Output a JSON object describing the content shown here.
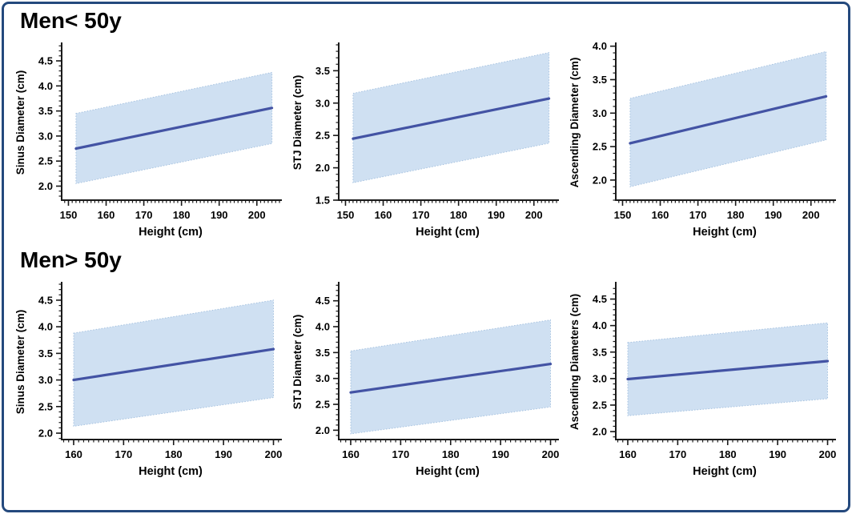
{
  "frame": {
    "border_color": "#24497d",
    "background": "#ffffff"
  },
  "styles": {
    "band_fill": "#cfe0f2",
    "band_edge": "#a6c2e0",
    "line_color": "#4353a4",
    "axis_color": "#1a1a1a",
    "text_color": "#000000"
  },
  "sections": [
    {
      "title": "Men< 50y"
    },
    {
      "title": "Men> 50y"
    }
  ],
  "chart_data": {
    "type": "line",
    "description": "Linear regression of aortic diameters on body height with shaded prediction interval bands",
    "panels": [
      {
        "id": "men-under-50-sinus",
        "row": 0,
        "section": "Men< 50y",
        "ylabel": "Sinus Diameter (cm)",
        "xlabel": "Height (cm)",
        "xlim": [
          148.2,
          206.0
        ],
        "xticks": [
          150,
          160,
          170,
          180,
          190,
          200
        ],
        "x_minor_step": 1,
        "ylim": [
          1.72,
          4.82
        ],
        "yticks": [
          "2.0",
          "2.5",
          "3.0",
          "3.5",
          "4.0",
          "4.5"
        ],
        "y_minor_step": 0.1,
        "x": [
          152,
          204
        ],
        "line": [
          2.75,
          3.56
        ],
        "band_upper": [
          3.45,
          4.27
        ],
        "band_lower": [
          2.05,
          2.85
        ]
      },
      {
        "id": "men-under-50-stj",
        "row": 0,
        "section": "Men< 50y",
        "ylabel": "STJ Diameter (cm)",
        "xlabel": "Height (cm)",
        "xlim": [
          148.2,
          206.0
        ],
        "xticks": [
          150,
          160,
          170,
          180,
          190,
          200
        ],
        "x_minor_step": 1,
        "ylim": [
          1.5,
          3.9
        ],
        "yticks": [
          "1.5",
          "2.0",
          "2.5",
          "3.0",
          "3.5"
        ],
        "y_minor_step": 0.1,
        "x": [
          152,
          204
        ],
        "line": [
          2.45,
          3.07
        ],
        "band_upper": [
          3.15,
          3.78
        ],
        "band_lower": [
          1.77,
          2.38
        ]
      },
      {
        "id": "men-under-50-ascending",
        "row": 0,
        "section": "Men< 50y",
        "ylabel": "Ascending Diameter (cm)",
        "xlabel": "Height (cm)",
        "xlim": [
          148.2,
          206.0
        ],
        "xticks": [
          150,
          160,
          170,
          180,
          190,
          200
        ],
        "x_minor_step": 1,
        "ylim": [
          1.7,
          4.02
        ],
        "yticks": [
          "2.0",
          "2.5",
          "3.0",
          "3.5",
          "4.0"
        ],
        "y_minor_step": 0.1,
        "x": [
          152,
          204
        ],
        "line": [
          2.55,
          3.25
        ],
        "band_upper": [
          3.22,
          3.92
        ],
        "band_lower": [
          1.9,
          2.6
        ]
      },
      {
        "id": "men-over-50-sinus",
        "row": 1,
        "section": "Men> 50y",
        "ylabel": "Sinus Diameter (cm)",
        "xlabel": "Height (cm)",
        "xlim": [
          157.6,
          201.2
        ],
        "xticks": [
          160,
          170,
          180,
          190,
          200
        ],
        "x_minor_step": 1,
        "ylim": [
          1.88,
          4.8
        ],
        "yticks": [
          "2.0",
          "2.5",
          "3.0",
          "3.5",
          "4.0",
          "4.5"
        ],
        "y_minor_step": 0.1,
        "x": [
          160,
          200
        ],
        "line": [
          3.0,
          3.58
        ],
        "band_upper": [
          3.88,
          4.5
        ],
        "band_lower": [
          2.13,
          2.67
        ]
      },
      {
        "id": "men-over-50-stj",
        "row": 1,
        "section": "Men> 50y",
        "ylabel": "STJ Diameter (cm)",
        "xlabel": "Height (cm)",
        "xlim": [
          157.6,
          201.2
        ],
        "xticks": [
          160,
          170,
          180,
          190,
          200
        ],
        "x_minor_step": 1,
        "ylim": [
          1.82,
          4.82
        ],
        "yticks": [
          "2.0",
          "2.5",
          "3.0",
          "3.5",
          "4.0",
          "4.5"
        ],
        "y_minor_step": 0.1,
        "x": [
          160,
          200
        ],
        "line": [
          2.73,
          3.28
        ],
        "band_upper": [
          3.53,
          4.13
        ],
        "band_lower": [
          1.93,
          2.45
        ]
      },
      {
        "id": "men-over-50-ascending",
        "row": 1,
        "section": "Men> 50y",
        "ylabel": "Ascending Diameters (cm)",
        "xlabel": "Height (cm)",
        "xlim": [
          157.6,
          201.2
        ],
        "xticks": [
          160,
          170,
          180,
          190,
          200
        ],
        "x_minor_step": 1,
        "ylim": [
          1.85,
          4.78
        ],
        "yticks": [
          "2.0",
          "2.5",
          "3.0",
          "3.5",
          "4.0",
          "4.5"
        ],
        "y_minor_step": 0.1,
        "x": [
          160,
          200
        ],
        "line": [
          2.99,
          3.33
        ],
        "band_upper": [
          3.68,
          4.05
        ],
        "band_lower": [
          2.3,
          2.62
        ]
      }
    ]
  }
}
